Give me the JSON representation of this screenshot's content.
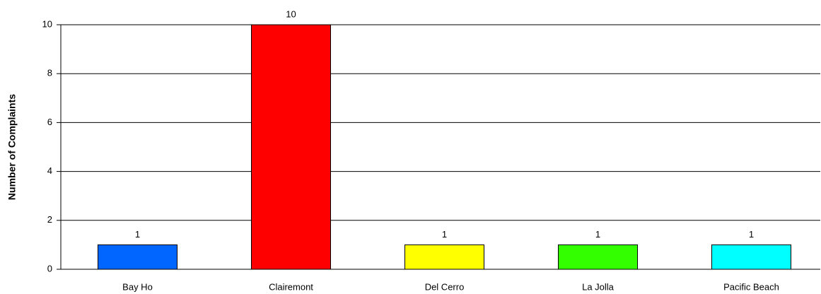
{
  "chart_data": {
    "type": "bar",
    "y_label": "Number of Complaints",
    "categories": [
      "Bay Ho",
      "Clairemont",
      "Del Cerro",
      "La Jolla",
      "Pacific Beach"
    ],
    "values": [
      1,
      10,
      1,
      1,
      1
    ],
    "colors": [
      "#0066ff",
      "#ff0000",
      "#ffff00",
      "#33ff00",
      "#00ffff"
    ],
    "ylim": [
      0,
      10
    ],
    "yticks": [
      0,
      2,
      4,
      6,
      8,
      10
    ],
    "grid": true
  }
}
